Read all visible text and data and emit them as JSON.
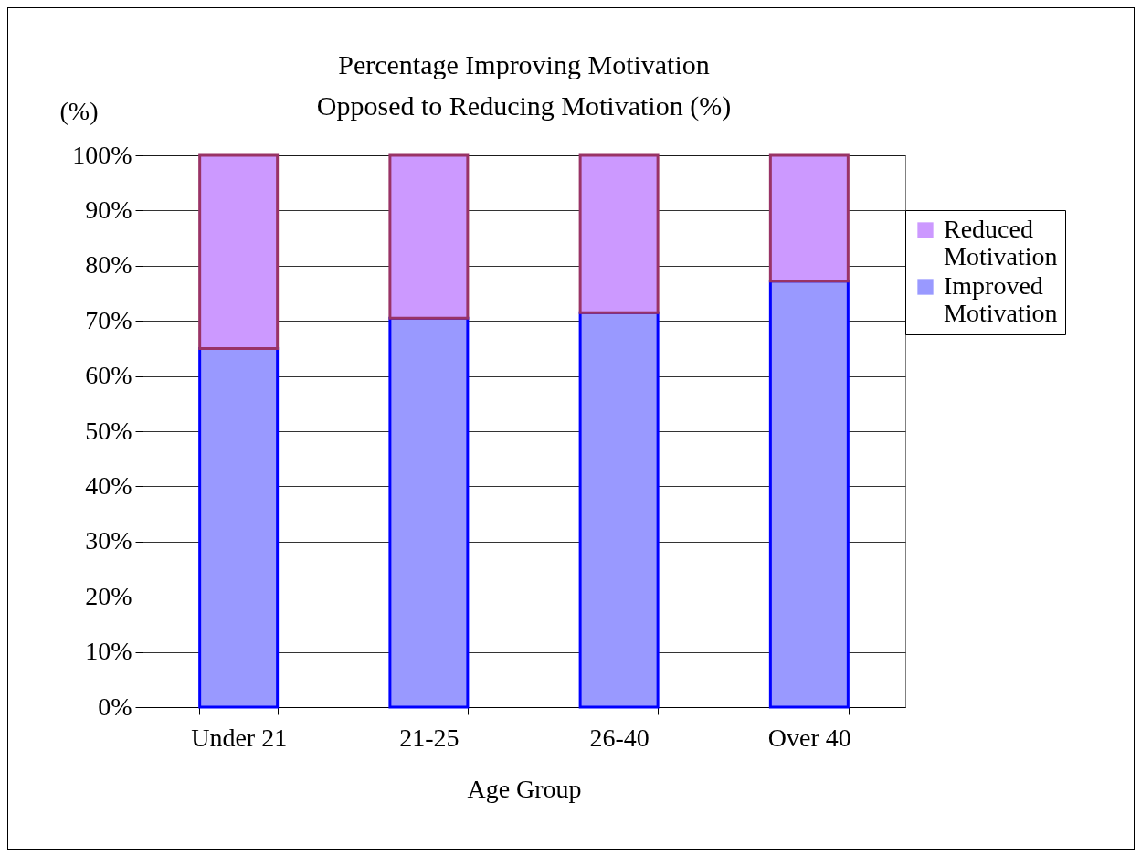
{
  "chart_data": {
    "type": "bar",
    "stacked": true,
    "title": "Percentage Improving Motivation\nOpposed to Reducing Motivation (%)",
    "xlabel": "Age Group",
    "ylabel": "(%)",
    "categories": [
      "Under 21",
      "21-25",
      "26-40",
      "Over 40"
    ],
    "series": [
      {
        "name": "Improved\nMotivation",
        "color": "#9999ff",
        "values": [
          65,
          70.5,
          71.5,
          77.2
        ]
      },
      {
        "name": "Reduced\nMotivation",
        "color": "#cc99ff",
        "values": [
          35,
          29.5,
          28.5,
          22.8
        ]
      }
    ],
    "ylim": [
      0,
      100
    ],
    "yticks": [
      {
        "value": 0,
        "label": "0%"
      },
      {
        "value": 10,
        "label": "10%"
      },
      {
        "value": 20,
        "label": "20%"
      },
      {
        "value": 30,
        "label": "30%"
      },
      {
        "value": 40,
        "label": "40%"
      },
      {
        "value": 50,
        "label": "50%"
      },
      {
        "value": 60,
        "label": "60%"
      },
      {
        "value": 70,
        "label": "70%"
      },
      {
        "value": 80,
        "label": "80%"
      },
      {
        "value": 90,
        "label": "90%"
      },
      {
        "value": 100,
        "label": "100%"
      }
    ],
    "grid": "y",
    "legend": "right"
  }
}
